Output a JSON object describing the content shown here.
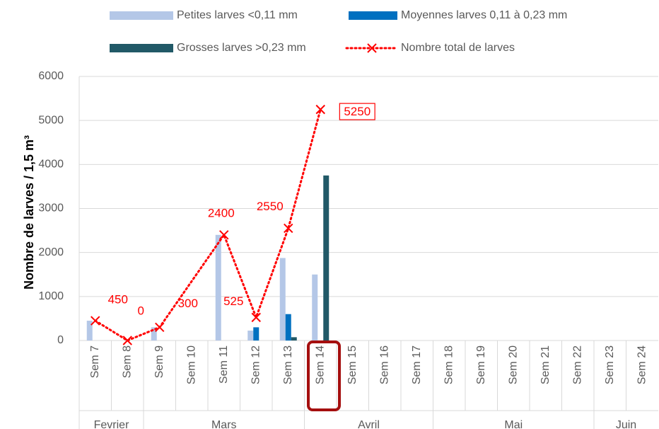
{
  "chart_data": {
    "type": "bar_line",
    "y_axis_label": "Nombre de larves / 1,5 m³",
    "categories": [
      "Sem 7",
      "Sem 8",
      "Sem 9",
      "Sem 10",
      "Sem 11",
      "Sem 12",
      "Sem 13",
      "Sem 14",
      "Sem 15",
      "Sem 16",
      "Sem 17",
      "Sem 18",
      "Sem 19",
      "Sem 20",
      "Sem 21",
      "Sem 22",
      "Sem 23",
      "Sem 24"
    ],
    "groups": [
      {
        "label": "Fevrier",
        "span": 2
      },
      {
        "label": "Mars",
        "span": 5
      },
      {
        "label": "Avril",
        "span": 4
      },
      {
        "label": "Mai",
        "span": 5
      },
      {
        "label": "Juin",
        "span": 2
      }
    ],
    "series": [
      {
        "name": "Petites larves <0,11 mm",
        "color": "#b4c7e7",
        "type": "bar",
        "values": [
          450,
          0,
          300,
          0,
          2400,
          225,
          1875,
          1500,
          0,
          0,
          0,
          0,
          0,
          0,
          0,
          0,
          0,
          0
        ]
      },
      {
        "name": "Moyennes larves 0,11 à 0,23 mm",
        "color": "#0070c0",
        "type": "bar",
        "values": [
          0,
          0,
          0,
          0,
          0,
          300,
          600,
          0,
          0,
          0,
          0,
          0,
          0,
          0,
          0,
          0,
          0,
          0
        ]
      },
      {
        "name": "Grosses larves >0,23 mm",
        "color": "#215967",
        "type": "bar",
        "values": [
          0,
          0,
          0,
          0,
          0,
          0,
          75,
          3750,
          0,
          0,
          0,
          0,
          0,
          0,
          0,
          0,
          0,
          0
        ]
      },
      {
        "name": "Nombre total de larves",
        "color": "#ff0000",
        "type": "line",
        "connect_gaps": true,
        "data_labels": true,
        "values": [
          450,
          0,
          300,
          null,
          2400,
          525,
          2550,
          5250,
          null,
          null,
          null,
          null,
          null,
          null,
          null,
          null,
          null,
          null
        ]
      }
    ],
    "ylim": [
      0,
      6000
    ],
    "yticks": [
      0,
      1000,
      2000,
      3000,
      4000,
      5000,
      6000
    ],
    "grid": true
  }
}
